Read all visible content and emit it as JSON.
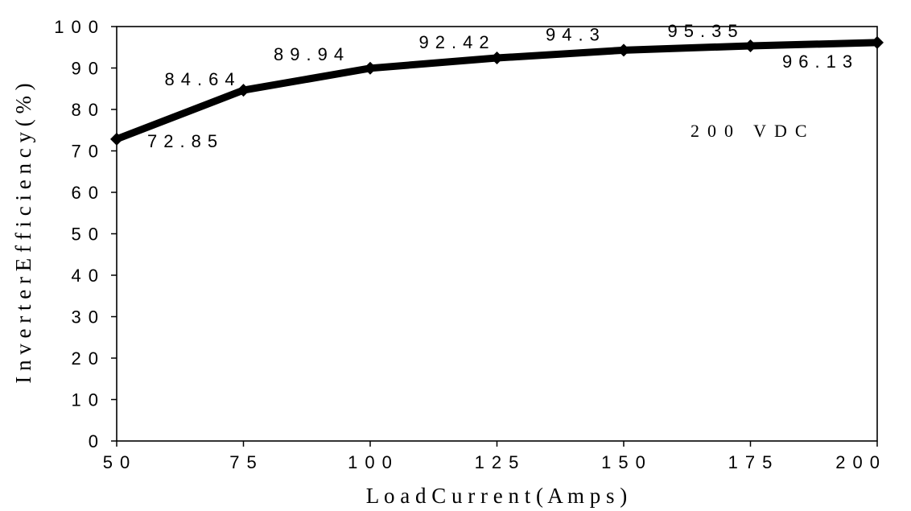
{
  "chart_data": {
    "type": "line",
    "title": "",
    "xlabel": "L o a d   C u r r e n t  ( A m p s )",
    "ylabel": "I n v e r t e r   E f f i c i e n c y   ( % )",
    "x": [
      50,
      75,
      100,
      125,
      150,
      175,
      200
    ],
    "series": [
      {
        "values": [
          72.85,
          84.64,
          89.94,
          92.42,
          94.3,
          95.35,
          96.13
        ]
      }
    ],
    "data_labels": [
      "72.85",
      "84.64",
      "89.94",
      "92.42",
      "94.3",
      "95.35",
      "96.13"
    ],
    "xlim": [
      50,
      200
    ],
    "ylim": [
      0,
      100
    ],
    "x_ticks": [
      50,
      75,
      100,
      125,
      150,
      175,
      200
    ],
    "y_ticks": [
      0,
      10,
      20,
      30,
      40,
      50,
      60,
      70,
      80,
      90,
      100
    ],
    "annotation": "200 VDC",
    "grid": false,
    "legend": "none",
    "line_color": "#000000"
  }
}
